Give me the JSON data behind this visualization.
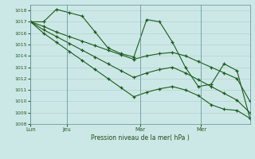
{
  "bg_color": "#cce8e6",
  "grid_color": "#aacccc",
  "line_color": "#1a5c1a",
  "xlabel": "Pression niveau de la mer( hPa )",
  "ylim": [
    1008,
    1018.5
  ],
  "yticks": [
    1008,
    1009,
    1010,
    1011,
    1012,
    1013,
    1014,
    1015,
    1016,
    1017,
    1018
  ],
  "day_labels": [
    "Lun",
    "Jeu",
    "Mar",
    "Mer"
  ],
  "day_positions": [
    0,
    3,
    9,
    14
  ],
  "xlim": [
    0,
    18
  ],
  "series": [
    [
      1017.0,
      1017.0,
      1018.1,
      1017.8,
      1017.5,
      1016.1,
      1014.7,
      1014.2,
      1013.9,
      1017.2,
      1017.0,
      1015.2,
      1013.0,
      1011.3,
      1011.5,
      1013.3,
      1012.7,
      1008.5
    ],
    [
      1017.0,
      1016.6,
      1016.1,
      1015.7,
      1015.3,
      1014.9,
      1014.5,
      1014.1,
      1013.7,
      1014.0,
      1014.2,
      1014.3,
      1014.0,
      1013.5,
      1013.0,
      1012.5,
      1012.0,
      1010.0
    ],
    [
      1017.0,
      1016.3,
      1015.7,
      1015.1,
      1014.5,
      1013.9,
      1013.3,
      1012.7,
      1012.1,
      1012.5,
      1012.8,
      1013.0,
      1012.5,
      1011.9,
      1011.3,
      1010.7,
      1010.1,
      1009.0
    ],
    [
      1017.0,
      1016.0,
      1015.2,
      1014.4,
      1013.6,
      1012.8,
      1012.0,
      1011.2,
      1010.4,
      1010.8,
      1011.1,
      1011.3,
      1011.0,
      1010.5,
      1009.7,
      1009.3,
      1009.2,
      1008.5
    ]
  ]
}
